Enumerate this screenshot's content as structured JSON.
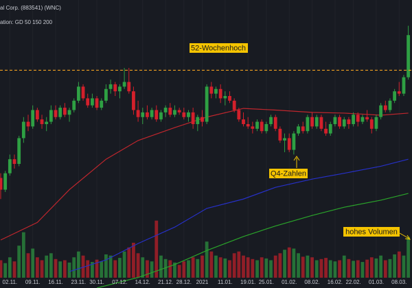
{
  "chart_data": {
    "type": "candlestick",
    "title": "al Corp. (883541) (WNC)",
    "subtitle": "ation: GD 50 150 200",
    "up_color": "#2ea043",
    "down_color": "#d3202b",
    "ylim": [
      9.2,
      21.5
    ],
    "vlim": [
      0,
      1000
    ],
    "categories": [
      null,
      null,
      "02.11.",
      null,
      null,
      null,
      null,
      "09.11.",
      null,
      null,
      null,
      null,
      "16.11.",
      null,
      null,
      null,
      null,
      "23.11.",
      null,
      null,
      null,
      "30.11.",
      null,
      null,
      null,
      null,
      "07.12.",
      null,
      null,
      null,
      null,
      "14.12.",
      null,
      null,
      null,
      null,
      "21.12.",
      null,
      null,
      null,
      "28.12.",
      null,
      null,
      null,
      "2021",
      null,
      null,
      null,
      null,
      "11.01.",
      null,
      null,
      null,
      null,
      "19.01.",
      null,
      null,
      null,
      "25.01.",
      null,
      null,
      null,
      null,
      "01.02.",
      null,
      null,
      null,
      null,
      "08.02.",
      null,
      null,
      null,
      null,
      "16.02.",
      null,
      null,
      null,
      "22.02.",
      null,
      null,
      null,
      null,
      "01.03.",
      null,
      null,
      null,
      null,
      "08.03.",
      null,
      null
    ],
    "candles": [
      [
        13.9,
        14.1,
        13.0,
        13.4
      ],
      [
        13.4,
        14.2,
        13.3,
        14.1
      ],
      [
        14.1,
        14.9,
        14.0,
        14.7
      ],
      [
        14.7,
        14.9,
        14.3,
        14.5
      ],
      [
        14.5,
        15.7,
        14.4,
        15.6
      ],
      [
        15.6,
        16.5,
        15.4,
        16.3
      ],
      [
        16.3,
        16.6,
        15.9,
        16.1
      ],
      [
        16.1,
        17.0,
        16.0,
        16.8
      ],
      [
        16.8,
        16.9,
        16.3,
        16.4
      ],
      [
        16.4,
        16.6,
        16.0,
        16.2
      ],
      [
        16.2,
        16.5,
        15.9,
        16.3
      ],
      [
        16.3,
        17.0,
        16.2,
        16.8
      ],
      [
        16.8,
        17.0,
        16.4,
        16.5
      ],
      [
        16.5,
        17.0,
        16.4,
        16.9
      ],
      [
        16.9,
        17.1,
        16.5,
        16.6
      ],
      [
        16.6,
        16.9,
        16.3,
        16.8
      ],
      [
        16.8,
        17.3,
        16.7,
        17.2
      ],
      [
        17.2,
        18.0,
        17.1,
        17.8
      ],
      [
        17.8,
        17.9,
        17.2,
        17.3
      ],
      [
        17.3,
        17.5,
        16.9,
        17.0
      ],
      [
        17.0,
        17.5,
        16.9,
        17.3
      ],
      [
        17.3,
        17.4,
        16.8,
        16.9
      ],
      [
        16.9,
        17.3,
        16.8,
        17.2
      ],
      [
        17.2,
        17.9,
        17.1,
        17.7
      ],
      [
        17.7,
        18.1,
        17.5,
        17.9
      ],
      [
        17.9,
        18.0,
        17.4,
        17.6
      ],
      [
        17.6,
        17.9,
        17.3,
        17.8
      ],
      [
        17.8,
        18.6,
        17.7,
        18.0
      ],
      [
        18.0,
        18.6,
        17.5,
        17.6
      ],
      [
        17.6,
        17.8,
        16.6,
        16.8
      ],
      [
        16.8,
        17.2,
        16.3,
        16.5
      ],
      [
        16.5,
        16.9,
        16.2,
        16.7
      ],
      [
        16.7,
        17.0,
        16.4,
        16.5
      ],
      [
        16.5,
        16.9,
        16.4,
        16.8
      ],
      [
        16.8,
        17.0,
        16.3,
        16.4
      ],
      [
        16.4,
        16.8,
        16.3,
        16.7
      ],
      [
        16.7,
        17.0,
        16.5,
        16.9
      ],
      [
        16.9,
        17.1,
        16.5,
        16.6
      ],
      [
        16.6,
        17.0,
        16.5,
        16.8
      ],
      [
        16.8,
        16.9,
        16.6,
        16.7
      ],
      [
        16.7,
        16.9,
        16.4,
        16.5
      ],
      [
        16.5,
        16.8,
        16.3,
        16.7
      ],
      [
        16.7,
        16.9,
        16.0,
        16.2
      ],
      [
        16.2,
        16.6,
        15.9,
        16.5
      ],
      [
        16.5,
        16.8,
        16.1,
        16.3
      ],
      [
        16.3,
        17.9,
        16.2,
        17.8
      ],
      [
        17.8,
        18.0,
        17.3,
        17.5
      ],
      [
        17.5,
        17.8,
        17.3,
        17.7
      ],
      [
        17.7,
        17.9,
        17.1,
        17.3
      ],
      [
        17.3,
        17.6,
        17.0,
        17.4
      ],
      [
        17.4,
        17.6,
        17.1,
        17.2
      ],
      [
        17.2,
        17.3,
        16.7,
        16.8
      ],
      [
        16.8,
        16.9,
        16.3,
        16.4
      ],
      [
        16.4,
        16.7,
        16.1,
        16.2
      ],
      [
        16.2,
        16.5,
        16.0,
        16.1
      ],
      [
        16.1,
        16.3,
        15.8,
        16.0
      ],
      [
        16.0,
        16.4,
        15.9,
        16.3
      ],
      [
        16.3,
        16.4,
        15.8,
        15.9
      ],
      [
        15.9,
        16.3,
        15.8,
        16.2
      ],
      [
        16.2,
        16.6,
        16.1,
        16.5
      ],
      [
        16.5,
        16.6,
        15.9,
        16.0
      ],
      [
        16.0,
        16.1,
        15.4,
        15.5
      ],
      [
        15.5,
        15.8,
        15.0,
        15.6
      ],
      [
        15.6,
        15.8,
        15.0,
        15.1
      ],
      [
        15.1,
        15.9,
        14.9,
        15.8
      ],
      [
        15.8,
        16.2,
        15.7,
        16.1
      ],
      [
        16.1,
        16.3,
        15.8,
        15.9
      ],
      [
        15.9,
        16.6,
        15.8,
        16.5
      ],
      [
        16.5,
        16.7,
        16.0,
        16.1
      ],
      [
        16.1,
        16.6,
        16.0,
        16.5
      ],
      [
        16.5,
        16.6,
        15.9,
        16.0
      ],
      [
        16.0,
        16.3,
        15.7,
        15.8
      ],
      [
        15.8,
        16.3,
        15.7,
        16.2
      ],
      [
        16.2,
        16.6,
        16.1,
        16.5
      ],
      [
        16.5,
        16.6,
        16.0,
        16.1
      ],
      [
        16.1,
        16.5,
        16.0,
        16.4
      ],
      [
        16.4,
        16.5,
        16.0,
        16.2
      ],
      [
        16.2,
        16.7,
        16.1,
        16.6
      ],
      [
        16.6,
        16.7,
        16.1,
        16.3
      ],
      [
        16.3,
        16.6,
        16.2,
        16.5
      ],
      [
        16.5,
        16.8,
        16.3,
        16.4
      ],
      [
        16.4,
        16.5,
        15.8,
        16.0
      ],
      [
        16.0,
        16.6,
        15.9,
        16.5
      ],
      [
        16.5,
        17.1,
        16.4,
        17.0
      ],
      [
        17.0,
        17.2,
        16.7,
        16.8
      ],
      [
        16.8,
        17.3,
        16.7,
        17.2
      ],
      [
        17.2,
        17.7,
        17.1,
        17.6
      ],
      [
        17.6,
        18.0,
        17.4,
        17.5
      ],
      [
        17.5,
        18.3,
        17.4,
        18.2
      ],
      [
        18.2,
        20.4,
        18.1,
        20.0
      ]
    ],
    "volume": [
      300,
      250,
      350,
      280,
      550,
      780,
      420,
      500,
      350,
      300,
      380,
      420,
      320,
      280,
      300,
      260,
      350,
      450,
      380,
      300,
      270,
      310,
      280,
      400,
      380,
      300,
      340,
      450,
      520,
      600,
      420,
      350,
      300,
      280,
      980,
      380,
      320,
      300,
      260,
      220,
      280,
      300,
      350,
      320,
      380,
      620,
      450,
      380,
      350,
      330,
      300,
      420,
      450,
      380,
      350,
      320,
      300,
      350,
      330,
      300,
      380,
      420,
      480,
      520,
      500,
      420,
      360,
      380,
      350,
      300,
      320,
      340,
      300,
      280,
      300,
      380,
      320,
      290,
      300,
      270,
      310,
      350,
      330,
      380,
      300,
      320,
      400,
      450,
      380,
      700
    ],
    "series": [
      {
        "color": "#c0262d",
        "x": [
          0,
          8,
          15,
          23,
          30,
          38,
          45,
          53,
          60,
          68,
          75,
          83,
          89
        ],
        "values": [
          11.25,
          12.0,
          13.4,
          14.7,
          15.5,
          16.05,
          16.5,
          16.87,
          16.8,
          16.7,
          16.67,
          16.58,
          16.67
        ]
      },
      {
        "color": "#2630c8",
        "x": [
          15,
          23,
          30,
          38,
          45,
          53,
          60,
          68,
          75,
          83,
          89
        ],
        "values": [
          9.9,
          10.4,
          11.1,
          11.8,
          12.6,
          13.0,
          13.5,
          13.85,
          14.1,
          14.4,
          14.7
        ]
      },
      {
        "color": "#2aa52a",
        "x": [
          21,
          30,
          38,
          45,
          53,
          60,
          68,
          75,
          83,
          89
        ],
        "values": [
          9.2,
          9.65,
          10.2,
          10.8,
          11.4,
          11.85,
          12.3,
          12.65,
          12.95,
          13.24
        ]
      }
    ],
    "high_line": {
      "value": 18.5,
      "label": "52-Wochenhoch",
      "color": "#f0a020"
    },
    "annotations": [
      {
        "text": "Q4-Zahlen"
      },
      {
        "text": "hohes Volumen"
      }
    ]
  }
}
